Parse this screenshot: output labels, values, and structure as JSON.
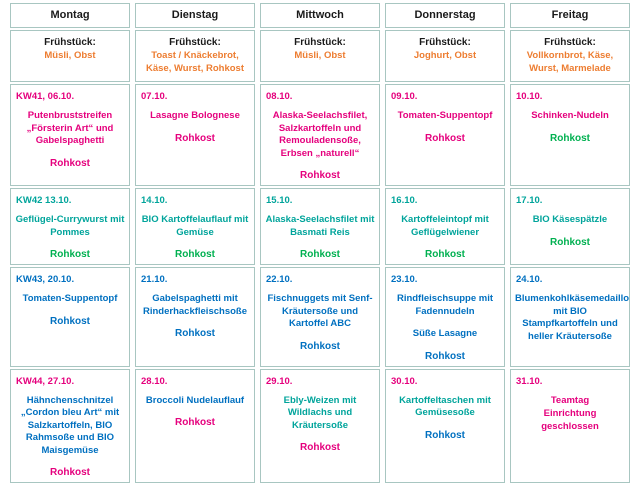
{
  "colors": {
    "pink": "#e5007d",
    "teal": "#00a49b",
    "green": "#00b050",
    "blue": "#0070c0",
    "orange": "#ed7d31",
    "header_text": "#1a1a1a",
    "grid_border": "#a8c6c1"
  },
  "days": [
    "Montag",
    "Dienstag",
    "Mittwoch",
    "Donnerstag",
    "Freitag"
  ],
  "breakfast_label": "Frühstück:",
  "breakfasts": [
    "Müsli, Obst",
    "Toast / Knäckebrot, Käse, Wurst, Rohkost",
    "Müsli, Obst",
    "Joghurt, Obst",
    "Vollkornbrot, Käse, Wurst, Marmelade"
  ],
  "weeks": [
    {
      "cells": [
        {
          "date": "KW41, 06.10.",
          "date_color": "pink",
          "meal": "Putenbruststreifen „Försterin Art“ und Gabelspaghetti",
          "meal_color": "pink",
          "side": "Rohkost",
          "side_color": "pink"
        },
        {
          "date": "07.10.",
          "date_color": "pink",
          "meal": "Lasagne Bolognese",
          "meal_color": "pink",
          "side": "Rohkost",
          "side_color": "pink"
        },
        {
          "date": "08.10.",
          "date_color": "pink",
          "meal": "Alaska-Seelachsfilet, Salzkartoffeln und Remouladensoße, Erbsen „naturell“",
          "meal_color": "pink",
          "side": "Rohkost",
          "side_color": "pink"
        },
        {
          "date": "09.10.",
          "date_color": "pink",
          "meal": "Tomaten-Suppentopf",
          "meal_color": "pink",
          "side": "Rohkost",
          "side_color": "pink"
        },
        {
          "date": "10.10.",
          "date_color": "pink",
          "meal": "Schinken-Nudeln",
          "meal_color": "pink",
          "side": "Rohkost",
          "side_color": "green"
        }
      ]
    },
    {
      "cells": [
        {
          "date": "KW42 13.10.",
          "date_color": "teal",
          "meal": "Geflügel-Currywurst mit Pommes",
          "meal_color": "teal",
          "side": "Rohkost",
          "side_color": "green"
        },
        {
          "date": "14.10.",
          "date_color": "teal",
          "meal": "BIO Kartoffelauflauf mit Gemüse",
          "meal_color": "teal",
          "side": "Rohkost",
          "side_color": "green"
        },
        {
          "date": "15.10.",
          "date_color": "teal",
          "meal": "Alaska-Seelachsfilet mit Basmati Reis",
          "meal_color": "teal",
          "side": "Rohkost",
          "side_color": "green"
        },
        {
          "date": "16.10.",
          "date_color": "teal",
          "meal": "Kartoffeleintopf mit Geflügelwiener",
          "meal_color": "teal",
          "side": "Rohkost",
          "side_color": "green"
        },
        {
          "date": "17.10.",
          "date_color": "teal",
          "meal": "BIO Käsespätzle",
          "meal_color": "teal",
          "side": "Rohkost",
          "side_color": "green"
        }
      ]
    },
    {
      "cells": [
        {
          "date": "KW43, 20.10.",
          "date_color": "blue",
          "meal": "Tomaten-Suppentopf",
          "meal_color": "blue",
          "side": "Rohkost",
          "side_color": "blue"
        },
        {
          "date": "21.10.",
          "date_color": "blue",
          "meal": "Gabelspaghetti mit Rinderhackfleischsoße",
          "meal_color": "blue",
          "side": "Rohkost",
          "side_color": "blue"
        },
        {
          "date": "22.10.",
          "date_color": "blue",
          "meal": "Fischnuggets mit Senf-Kräutersoße und Kartoffel ABC",
          "meal_color": "blue",
          "side": "Rohkost",
          "side_color": "blue"
        },
        {
          "date": "23.10.",
          "date_color": "blue",
          "meal": "Rindfleischsuppe mit Fadennudeln",
          "meal2": "Süße Lasagne",
          "meal_color": "blue",
          "side": "Rohkost",
          "side_color": "blue"
        },
        {
          "date": "24.10.",
          "date_color": "blue",
          "meal": "Blumenkohlkäsemedaillons mit BIO Stampfkartoffeln und heller Kräutersoße",
          "meal_color": "blue"
        }
      ]
    },
    {
      "cells": [
        {
          "date": "KW44, 27.10.",
          "date_color": "pink",
          "meal": "Hähnchenschnitzel „Cordon bleu Art“ mit Salzkartoffeln, BIO Rahmsoße und BIO Maisgemüse",
          "meal_color": "blue",
          "side": "Rohkost",
          "side_color": "pink"
        },
        {
          "date": "28.10.",
          "date_color": "pink",
          "meal": "Broccoli Nudelauflauf",
          "meal_color": "blue",
          "side": "Rohkost",
          "side_color": "pink"
        },
        {
          "date": "29.10.",
          "date_color": "pink",
          "meal": "Ebly-Weizen mit Wildlachs und Kräutersoße",
          "meal_color": "teal",
          "side": "Rohkost",
          "side_color": "pink"
        },
        {
          "date": "30.10.",
          "date_color": "pink",
          "meal": "Kartoffeltaschen mit Gemüsesoße",
          "meal_color": "teal",
          "side": "Rohkost",
          "side_color": "blue"
        },
        {
          "date": "31.10.",
          "date_color": "pink",
          "meal": "Teamtag",
          "meal2": "Einrichtung geschlossen",
          "meal_color": "pink"
        }
      ]
    }
  ]
}
